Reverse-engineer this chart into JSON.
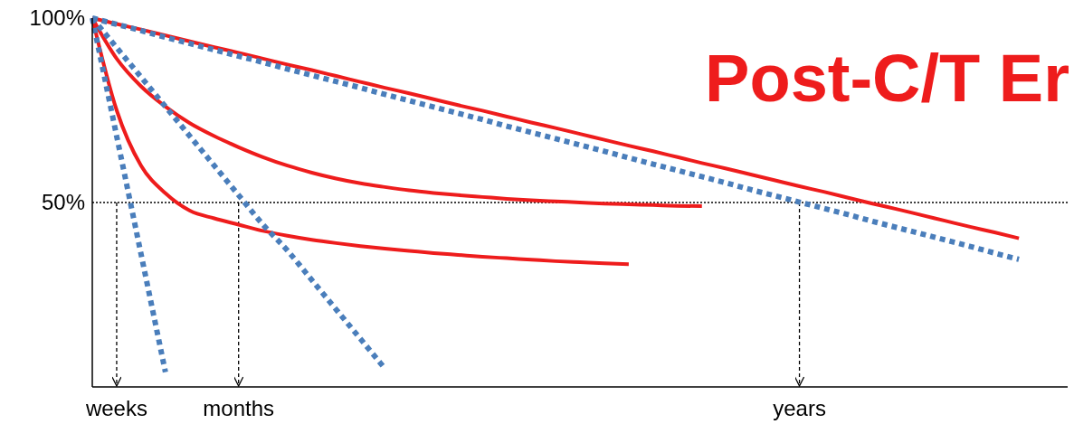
{
  "chart_data": {
    "type": "line",
    "title": "Post-C/T Er",
    "categories": [
      null,
      "weeks",
      null,
      null,
      null,
      null,
      "months",
      null,
      null,
      null,
      null,
      null,
      null,
      null,
      null,
      null,
      null,
      null,
      null,
      null,
      null,
      null,
      null,
      null,
      null,
      null,
      null,
      null,
      null,
      "years",
      null,
      null,
      null,
      null,
      null,
      null,
      null,
      null,
      null,
      null,
      null
    ],
    "ylim": [
      0,
      100
    ],
    "yticks": [
      {
        "value": 50,
        "label": "50%"
      },
      {
        "value": 100,
        "label": "100%"
      }
    ],
    "grid": false,
    "legend": false,
    "ref_lines": [
      {
        "axis": "y",
        "value": 50,
        "line_style": "dotted",
        "color": "#000000"
      },
      {
        "axis": "x",
        "value": "weeks",
        "line_style": "dashed",
        "color": "#000000"
      },
      {
        "axis": "x",
        "value": "months",
        "line_style": "dashed",
        "color": "#000000"
      },
      {
        "axis": "x",
        "value": "years",
        "line_style": "dashed",
        "color": "#000000"
      }
    ],
    "series": [
      {
        "color": "#ee1c1c",
        "line_style": "solid",
        "values": [
          100,
          98.4,
          96.9,
          95.3,
          93.7,
          92.1,
          90.6,
          89.0,
          87.4,
          85.9,
          84.3,
          82.7,
          81.1,
          79.6,
          78.0,
          76.4,
          74.9,
          73.3,
          71.7,
          70.2,
          68.6,
          67.0,
          65.4,
          63.9,
          62.3,
          60.7,
          59.2,
          57.6,
          56.0,
          54.4,
          52.9,
          51.3,
          49.7,
          48.2,
          46.6,
          45.0,
          43.4,
          41.9,
          40.3,
          null,
          null
        ]
      },
      {
        "color": "#4a7ebb",
        "line_style": "dotted",
        "values": [
          100,
          98.3,
          96.6,
          94.8,
          93.1,
          91.4,
          89.7,
          88.0,
          86.2,
          84.5,
          82.8,
          81.1,
          79.3,
          77.6,
          75.9,
          74.2,
          72.5,
          70.7,
          69.0,
          67.3,
          65.6,
          63.9,
          62.1,
          60.4,
          58.7,
          57.0,
          55.3,
          53.5,
          51.8,
          50.1,
          48.4,
          46.7,
          44.9,
          43.2,
          41.5,
          39.8,
          38.1,
          36.3,
          34.6,
          null,
          null
        ]
      },
      {
        "color": "#ee1c1c",
        "line_style": "solid",
        "values": [
          100,
          89,
          81.5,
          76,
          71.5,
          68,
          65,
          62.3,
          60,
          58.1,
          56.5,
          55.2,
          54.2,
          53.3,
          52.6,
          52,
          51.5,
          51,
          50.6,
          50.3,
          50,
          49.7,
          49.5,
          49.3,
          49.1,
          49,
          null,
          null,
          null,
          null,
          null,
          null,
          null,
          null,
          null,
          null,
          null,
          null,
          null,
          null,
          null
        ]
      },
      {
        "color": "#ee1c1c",
        "line_style": "solid",
        "values": [
          100,
          75,
          60,
          52.5,
          47.8,
          45.7,
          44,
          42.3,
          41,
          39.9,
          39,
          38.2,
          37.5,
          36.9,
          36.3,
          35.8,
          35.3,
          34.9,
          34.5,
          34.1,
          33.8,
          33.5,
          33.3,
          null,
          null,
          null,
          null,
          null,
          null,
          null,
          null,
          null,
          null,
          null,
          null,
          null,
          null,
          null,
          null,
          null,
          null
        ]
      },
      {
        "color": "#4a7ebb",
        "line_style": "dotted",
        "values": [
          100,
          68,
          36,
          4,
          null,
          null,
          null,
          null,
          null,
          null,
          null,
          null,
          null,
          null,
          null,
          null,
          null,
          null,
          null,
          null,
          null,
          null,
          null,
          null,
          null,
          null,
          null,
          null,
          null,
          null,
          null,
          null,
          null,
          null,
          null,
          null,
          null,
          null,
          null,
          null,
          null
        ]
      },
      {
        "color": "#4a7ebb",
        "line_style": "dotted",
        "values": [
          100,
          92,
          84,
          76,
          68,
          60,
          52,
          44,
          37,
          29,
          21,
          13,
          5,
          null,
          null,
          null,
          null,
          null,
          null,
          null,
          null,
          null,
          null,
          null,
          null,
          null,
          null,
          null,
          null,
          null,
          null,
          null,
          null,
          null,
          null,
          null,
          null,
          null,
          null,
          null,
          null
        ]
      }
    ]
  }
}
